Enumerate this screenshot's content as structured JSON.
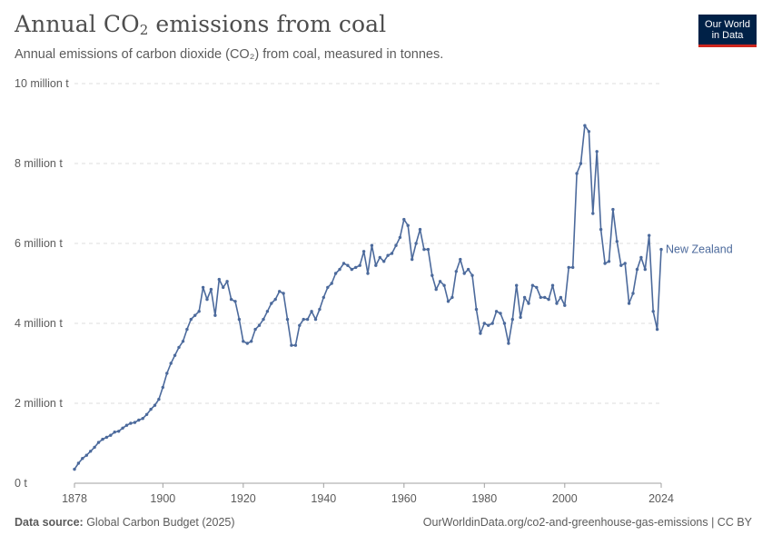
{
  "header": {
    "title_main": "Annual CO",
    "title_sub": "2",
    "title_end": " emissions from coal",
    "subtitle": "Annual emissions of carbon dioxide (CO₂) from coal, measured in tonnes."
  },
  "logo": {
    "line1": "Our World",
    "line2": "in Data"
  },
  "footer": {
    "source_label": "Data source:",
    "source_value": " Global Carbon Budget (2025)",
    "url": "OurWorldinData.org/co2-and-greenhouse-gas-emissions | CC BY"
  },
  "chart_data": {
    "type": "line",
    "title": "Annual CO₂ emissions from coal",
    "xlabel": "",
    "ylabel": "",
    "xlim": [
      1878,
      2024
    ],
    "ylim": [
      0,
      10
    ],
    "y_unit": "million tonnes",
    "grid": true,
    "x_ticks": [
      {
        "value": 1878,
        "label": "1878"
      },
      {
        "value": 1900,
        "label": "1900"
      },
      {
        "value": 1920,
        "label": "1920"
      },
      {
        "value": 1940,
        "label": "1940"
      },
      {
        "value": 1960,
        "label": "1960"
      },
      {
        "value": 1980,
        "label": "1980"
      },
      {
        "value": 2000,
        "label": "2000"
      },
      {
        "value": 2024,
        "label": "2024"
      }
    ],
    "y_ticks": [
      {
        "value": 0,
        "label": "0 t"
      },
      {
        "value": 2,
        "label": "2 million t"
      },
      {
        "value": 4,
        "label": "4 million t"
      },
      {
        "value": 6,
        "label": "6 million t"
      },
      {
        "value": 8,
        "label": "8 million t"
      },
      {
        "value": 10,
        "label": "10 million t"
      }
    ],
    "series": [
      {
        "name": "New Zealand",
        "color": "#4c6a9c",
        "x": [
          1878,
          1879,
          1880,
          1881,
          1882,
          1883,
          1884,
          1885,
          1886,
          1887,
          1888,
          1889,
          1890,
          1891,
          1892,
          1893,
          1894,
          1895,
          1896,
          1897,
          1898,
          1899,
          1900,
          1901,
          1902,
          1903,
          1904,
          1905,
          1906,
          1907,
          1908,
          1909,
          1910,
          1911,
          1912,
          1913,
          1914,
          1915,
          1916,
          1917,
          1918,
          1919,
          1920,
          1921,
          1922,
          1923,
          1924,
          1925,
          1926,
          1927,
          1928,
          1929,
          1930,
          1931,
          1932,
          1933,
          1934,
          1935,
          1936,
          1937,
          1938,
          1939,
          1940,
          1941,
          1942,
          1943,
          1944,
          1945,
          1946,
          1947,
          1948,
          1949,
          1950,
          1951,
          1952,
          1953,
          1954,
          1955,
          1956,
          1957,
          1958,
          1959,
          1960,
          1961,
          1962,
          1963,
          1964,
          1965,
          1966,
          1967,
          1968,
          1969,
          1970,
          1971,
          1972,
          1973,
          1974,
          1975,
          1976,
          1977,
          1978,
          1979,
          1980,
          1981,
          1982,
          1983,
          1984,
          1985,
          1986,
          1987,
          1988,
          1989,
          1990,
          1991,
          1992,
          1993,
          1994,
          1995,
          1996,
          1997,
          1998,
          1999,
          2000,
          2001,
          2002,
          2003,
          2004,
          2005,
          2006,
          2007,
          2008,
          2009,
          2010,
          2011,
          2012,
          2013,
          2014,
          2015,
          2016,
          2017,
          2018,
          2019,
          2020,
          2021,
          2022,
          2023,
          2024
        ],
        "values": [
          0.35,
          0.5,
          0.62,
          0.7,
          0.8,
          0.9,
          1.02,
          1.1,
          1.15,
          1.2,
          1.28,
          1.3,
          1.38,
          1.45,
          1.5,
          1.52,
          1.58,
          1.62,
          1.72,
          1.85,
          1.95,
          2.1,
          2.4,
          2.75,
          3.0,
          3.2,
          3.4,
          3.55,
          3.85,
          4.1,
          4.2,
          4.3,
          4.9,
          4.6,
          4.85,
          4.2,
          5.1,
          4.9,
          5.05,
          4.6,
          4.55,
          4.1,
          3.55,
          3.5,
          3.55,
          3.85,
          3.95,
          4.1,
          4.3,
          4.5,
          4.6,
          4.8,
          4.75,
          4.1,
          3.45,
          3.45,
          3.95,
          4.1,
          4.1,
          4.3,
          4.1,
          4.35,
          4.65,
          4.9,
          5.0,
          5.25,
          5.35,
          5.5,
          5.45,
          5.35,
          5.4,
          5.45,
          5.8,
          5.25,
          5.95,
          5.45,
          5.65,
          5.55,
          5.7,
          5.75,
          5.95,
          6.15,
          6.6,
          6.45,
          5.6,
          6.0,
          6.35,
          5.85,
          5.85,
          5.2,
          4.85,
          5.05,
          4.95,
          4.55,
          4.65,
          5.3,
          5.6,
          5.25,
          5.35,
          5.2,
          4.35,
          3.75,
          4.0,
          3.95,
          4.0,
          4.3,
          4.25,
          4.0,
          3.5,
          4.1,
          4.95,
          4.15,
          4.65,
          4.5,
          4.95,
          4.9,
          4.65,
          4.65,
          4.6,
          4.95,
          4.5,
          4.65,
          4.45,
          5.4,
          5.4,
          7.75,
          8.0,
          8.95,
          8.8,
          6.75,
          8.3,
          6.35,
          5.5,
          5.55,
          6.85,
          6.05,
          5.45,
          5.5,
          4.5,
          4.75,
          5.35,
          5.65,
          5.35,
          6.2,
          4.3,
          3.85,
          5.85
        ]
      }
    ]
  }
}
